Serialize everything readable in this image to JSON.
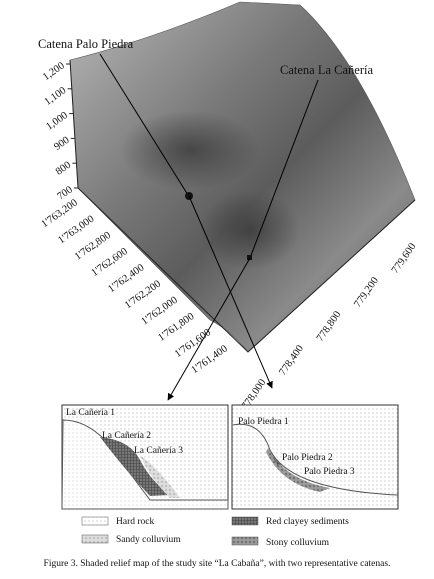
{
  "map": {
    "z_ticks": [
      "1,200",
      "1,100",
      "1,000",
      "900",
      "800",
      "700"
    ],
    "north_ticks": [
      "1'763,200",
      "1'763,000",
      "1'762,800",
      "1'762,600",
      "1'762,400",
      "1'762,200",
      "1'762,000",
      "1'761,800",
      "1'761,600",
      "1'761,400"
    ],
    "east_ticks": [
      "778,000",
      "778,400",
      "778,800",
      "779,200",
      "779,600"
    ],
    "callouts": [
      "Catena Palo Piedra",
      "Catena La Cañería"
    ]
  },
  "insets": [
    {
      "labels": [
        "La Cañería 1",
        "La Cañería 2",
        "La Cañería 3"
      ]
    },
    {
      "labels": [
        "Palo Piedra 1",
        "Palo Piedra 2",
        "Palo Piedra 3"
      ]
    }
  ],
  "legend": [
    "Hard rock",
    "Sandy colluvium",
    "Red clayey sediments",
    "Stony colluvium"
  ],
  "caption": "Figure 3. Shaded relief map of the study site “La Cabaña”, with two representative catenas."
}
